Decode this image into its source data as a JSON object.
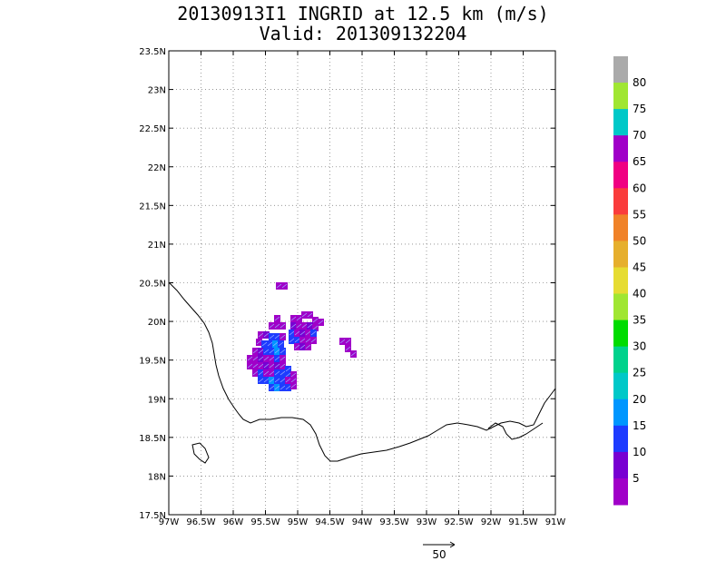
{
  "title": {
    "line1": "20130913I1 INGRID at 12.5 km (m/s)",
    "line2": "Valid: 201309132204"
  },
  "map": {
    "lat_range": [
      17.5,
      23.5
    ],
    "lon_range": [
      -97,
      -91
    ],
    "grid": true,
    "lat_labels": [
      "23.5N",
      "23N",
      "22.5N",
      "22N",
      "21.5N",
      "21N",
      "20.5N",
      "20N",
      "19.5N",
      "19N",
      "18.5N",
      "18N",
      "17.5N"
    ],
    "lon_labels": [
      "97W",
      "96.5W",
      "96W",
      "95.5W",
      "95W",
      "94.5W",
      "94W",
      "93.5W",
      "93W",
      "92.5W",
      "92W",
      "91.5W",
      "91W"
    ]
  },
  "colorbar": {
    "labels": [
      "5",
      "10",
      "15",
      "20",
      "25",
      "30",
      "35",
      "40",
      "45",
      "50",
      "55",
      "60",
      "65",
      "70",
      "75",
      "80"
    ],
    "colors": [
      "#a000c8",
      "#7800d2",
      "#1e3cff",
      "#0096ff",
      "#00c8c8",
      "#00d28c",
      "#00dc00",
      "#a0e632",
      "#e6dc32",
      "#e6af2d",
      "#f08228",
      "#fa3c3c",
      "#f00082",
      "#a000c8",
      "#00c8c8",
      "#a0e632",
      "#aaaaaa"
    ]
  },
  "reference_vector": {
    "label": "50"
  },
  "wind_cells": {
    "colors": {
      "purple": "#a000c8",
      "violet": "#7800d2",
      "blue": "#1e3cff",
      "sky": "#0096ff"
    },
    "note_free": true
  }
}
